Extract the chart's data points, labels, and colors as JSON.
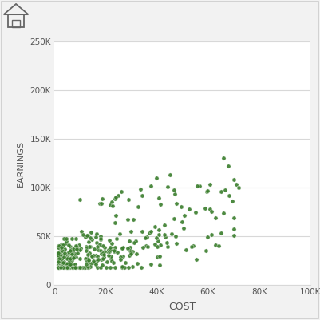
{
  "xlabel": "COST",
  "ylabel": "EARNINGS",
  "xlim": [
    0,
    100000
  ],
  "ylim": [
    0,
    250000
  ],
  "xticks": [
    0,
    20000,
    40000,
    60000,
    80000,
    100000
  ],
  "yticks": [
    0,
    50000,
    100000,
    150000,
    200000,
    250000
  ],
  "dot_color": "#3a7d2c",
  "dot_edge_color": "#ffffff",
  "dot_size": 14,
  "dot_alpha": 0.9,
  "background_color": "#f2f2f2",
  "plot_background": "#ffffff",
  "grid_color": "#d8d8d8",
  "border_color": "#cccccc",
  "seed": 42,
  "n_points": 350
}
